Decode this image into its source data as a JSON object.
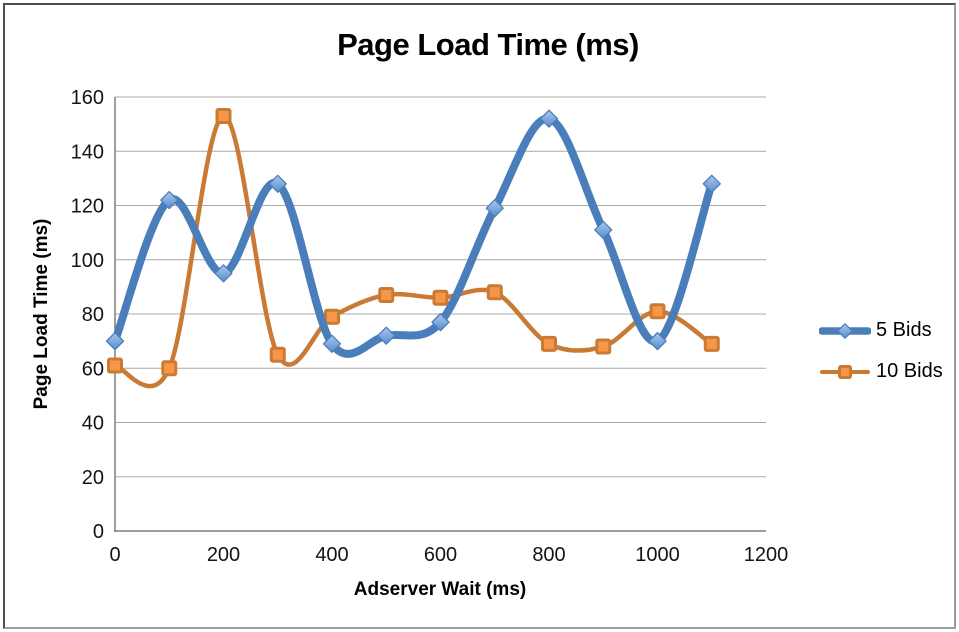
{
  "chart_data": {
    "type": "line",
    "smooth": true,
    "title": "Page Load Time (ms)",
    "xlabel": "Adserver Wait (ms)",
    "ylabel": "Page Load Time (ms)",
    "x": [
      0,
      100,
      200,
      300,
      400,
      500,
      600,
      700,
      800,
      900,
      1000,
      1100
    ],
    "series": [
      {
        "name": "5 Bids",
        "values": [
          70,
          122,
          95,
          128,
          69,
          72,
          77,
          119,
          152,
          111,
          70,
          128
        ],
        "color": "#4a7ebb",
        "marker": "diamond",
        "marker_fill_top": "#aac9ec",
        "marker_fill_bottom": "#5a8ccd",
        "line_width": 8
      },
      {
        "name": "10 Bids",
        "values": [
          61,
          60,
          153,
          65,
          79,
          87,
          86,
          88,
          69,
          68,
          81,
          69
        ],
        "color": "#c97b36",
        "marker": "square",
        "marker_fill": "#f79646",
        "line_width": 4.5
      }
    ],
    "xlim": [
      0,
      1200
    ],
    "ylim": [
      0,
      160
    ],
    "x_ticks": [
      0,
      200,
      400,
      600,
      800,
      1000,
      1200
    ],
    "y_ticks": [
      0,
      20,
      40,
      60,
      80,
      100,
      120,
      140,
      160
    ],
    "grid": "horizontal",
    "legend_position": "right"
  },
  "colors": {
    "gridline": "#a8a8a8",
    "axis": "#7f7f7f",
    "frame_border": "#8c8c8c",
    "background": "#ffffff",
    "text": "#000000"
  }
}
